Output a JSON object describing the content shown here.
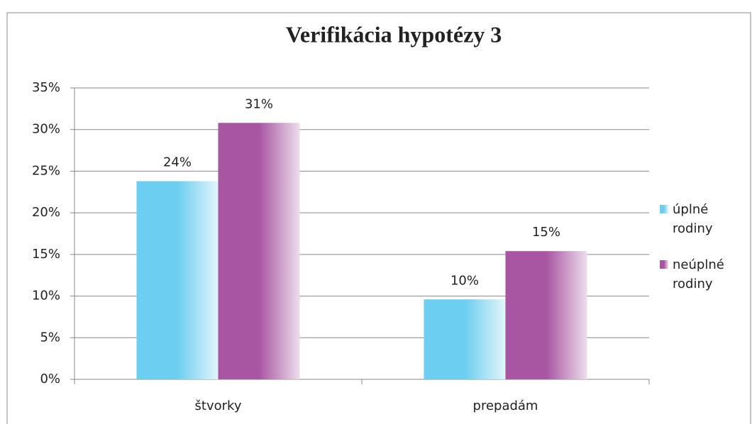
{
  "chart_data": {
    "type": "bar",
    "title": "Verifikácia hypotézy 3",
    "categories": [
      "štvorky",
      "prepadám"
    ],
    "series": [
      {
        "name": "úplné rodiny",
        "color": "#6ccef0",
        "values": [
          23.8,
          9.6
        ],
        "value_labels": [
          "24%",
          "10%"
        ]
      },
      {
        "name": "neúplné rodiny",
        "color": "#a855a2",
        "values": [
          30.8,
          15.4
        ],
        "value_labels": [
          "31%",
          "15%"
        ]
      }
    ],
    "ylim": [
      0,
      35
    ],
    "yticks": [
      {
        "value": 0,
        "label": "0%"
      },
      {
        "value": 5,
        "label": "5%"
      },
      {
        "value": 10,
        "label": "10%"
      },
      {
        "value": 15,
        "label": "15%"
      },
      {
        "value": 20,
        "label": "20%"
      },
      {
        "value": 25,
        "label": "25%"
      },
      {
        "value": 30,
        "label": "30%"
      },
      {
        "value": 35,
        "label": "35%"
      }
    ],
    "grid": true,
    "legend": "right"
  }
}
